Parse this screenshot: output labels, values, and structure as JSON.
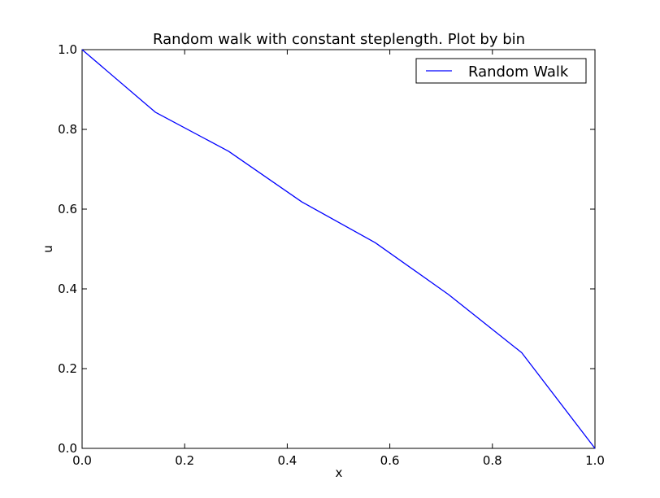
{
  "chart_data": {
    "type": "line",
    "title": "Random walk with constant steplength. Plot by bin",
    "xlabel": "x",
    "ylabel": "u",
    "xlim": [
      0,
      1
    ],
    "ylim": [
      0,
      1
    ],
    "xticks": [
      "0.0",
      "0.2",
      "0.4",
      "0.6",
      "0.8",
      "1.0"
    ],
    "yticks": [
      "0.0",
      "0.2",
      "0.4",
      "0.6",
      "0.8",
      "1.0"
    ],
    "grid": false,
    "legend_position": "top-right",
    "series": [
      {
        "name": "Random Walk",
        "color": "#0000ff",
        "x": [
          0.0,
          0.1429,
          0.2857,
          0.4286,
          0.5714,
          0.7143,
          0.8571,
          1.0
        ],
        "y": [
          1.0,
          0.843,
          0.745,
          0.618,
          0.516,
          0.386,
          0.24,
          0.0
        ]
      }
    ]
  }
}
